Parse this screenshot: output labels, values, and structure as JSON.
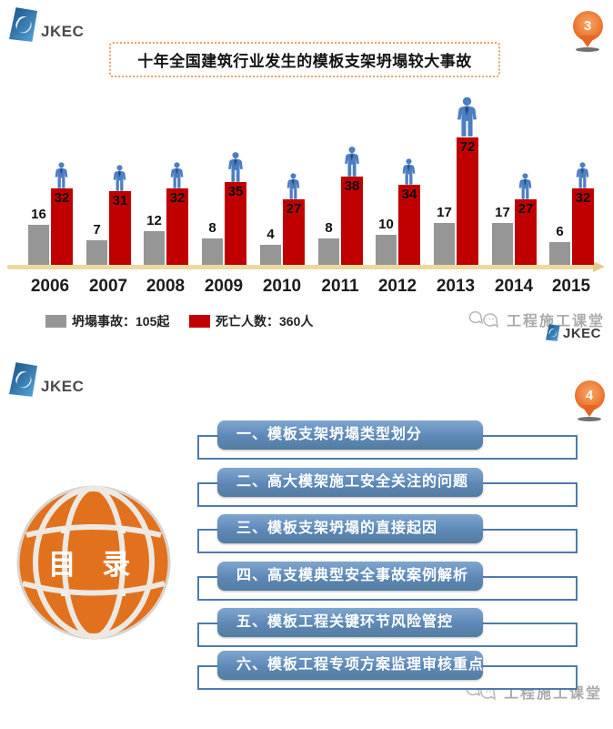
{
  "chart_data": {
    "type": "bar",
    "title": "十年全国建筑行业发生的模板支架坍塌较大事故",
    "categories": [
      "2006",
      "2007",
      "2008",
      "2009",
      "2010",
      "2011",
      "2012",
      "2013",
      "2014",
      "2015"
    ],
    "series": [
      {
        "name": "坍塌事故",
        "unit": "起",
        "color": "#969696",
        "values": [
          16,
          7,
          12,
          8,
          4,
          8,
          10,
          17,
          17,
          6
        ],
        "total": 105
      },
      {
        "name": "死亡人数",
        "unit": "人",
        "color": "#c00000",
        "values": [
          32,
          31,
          32,
          35,
          27,
          38,
          34,
          72,
          27,
          32
        ],
        "total": 360
      }
    ],
    "legend": [
      "坍塌事故：105起",
      "死亡人数：360人"
    ],
    "legend_position": "bottom-left",
    "value_labels": true,
    "grid": false,
    "y_axis_visible": false,
    "x_axis": {
      "color": "#ecd9a0",
      "arrow_right": true
    },
    "decoration": "blue person icon standing on top of each deaths bar"
  },
  "slide1": {
    "logo_text": "JKEC",
    "page_number": "3",
    "watermark": "工程施工课堂",
    "footer_logo_text": "JKEC"
  },
  "slide2": {
    "logo_text": "JKEC",
    "page_number": "4",
    "globe_label": "目 录",
    "toc": [
      "一、模板支架坍塌类型划分",
      "二、高大模架施工安全关注的问题",
      "三、模板支架坍塌的直接起因",
      "四、高支模典型安全事故案例解析",
      "五、模板工程关键环节风险管控",
      "六、模板工程专项方案监理审核重点"
    ],
    "watermark": "工程施工课堂"
  },
  "colors": {
    "bar_gray": "#969696",
    "bar_red": "#c00000",
    "axis_gold": "#ecd9a0",
    "toc_bar_blue": "#5d88b7",
    "toc_outline_blue": "#4e7bab",
    "pin_orange": "#e66525",
    "globe_orange": "#e2711d",
    "title_border_orange": "#e3a45c",
    "person_blue": "#4c7ec1"
  }
}
